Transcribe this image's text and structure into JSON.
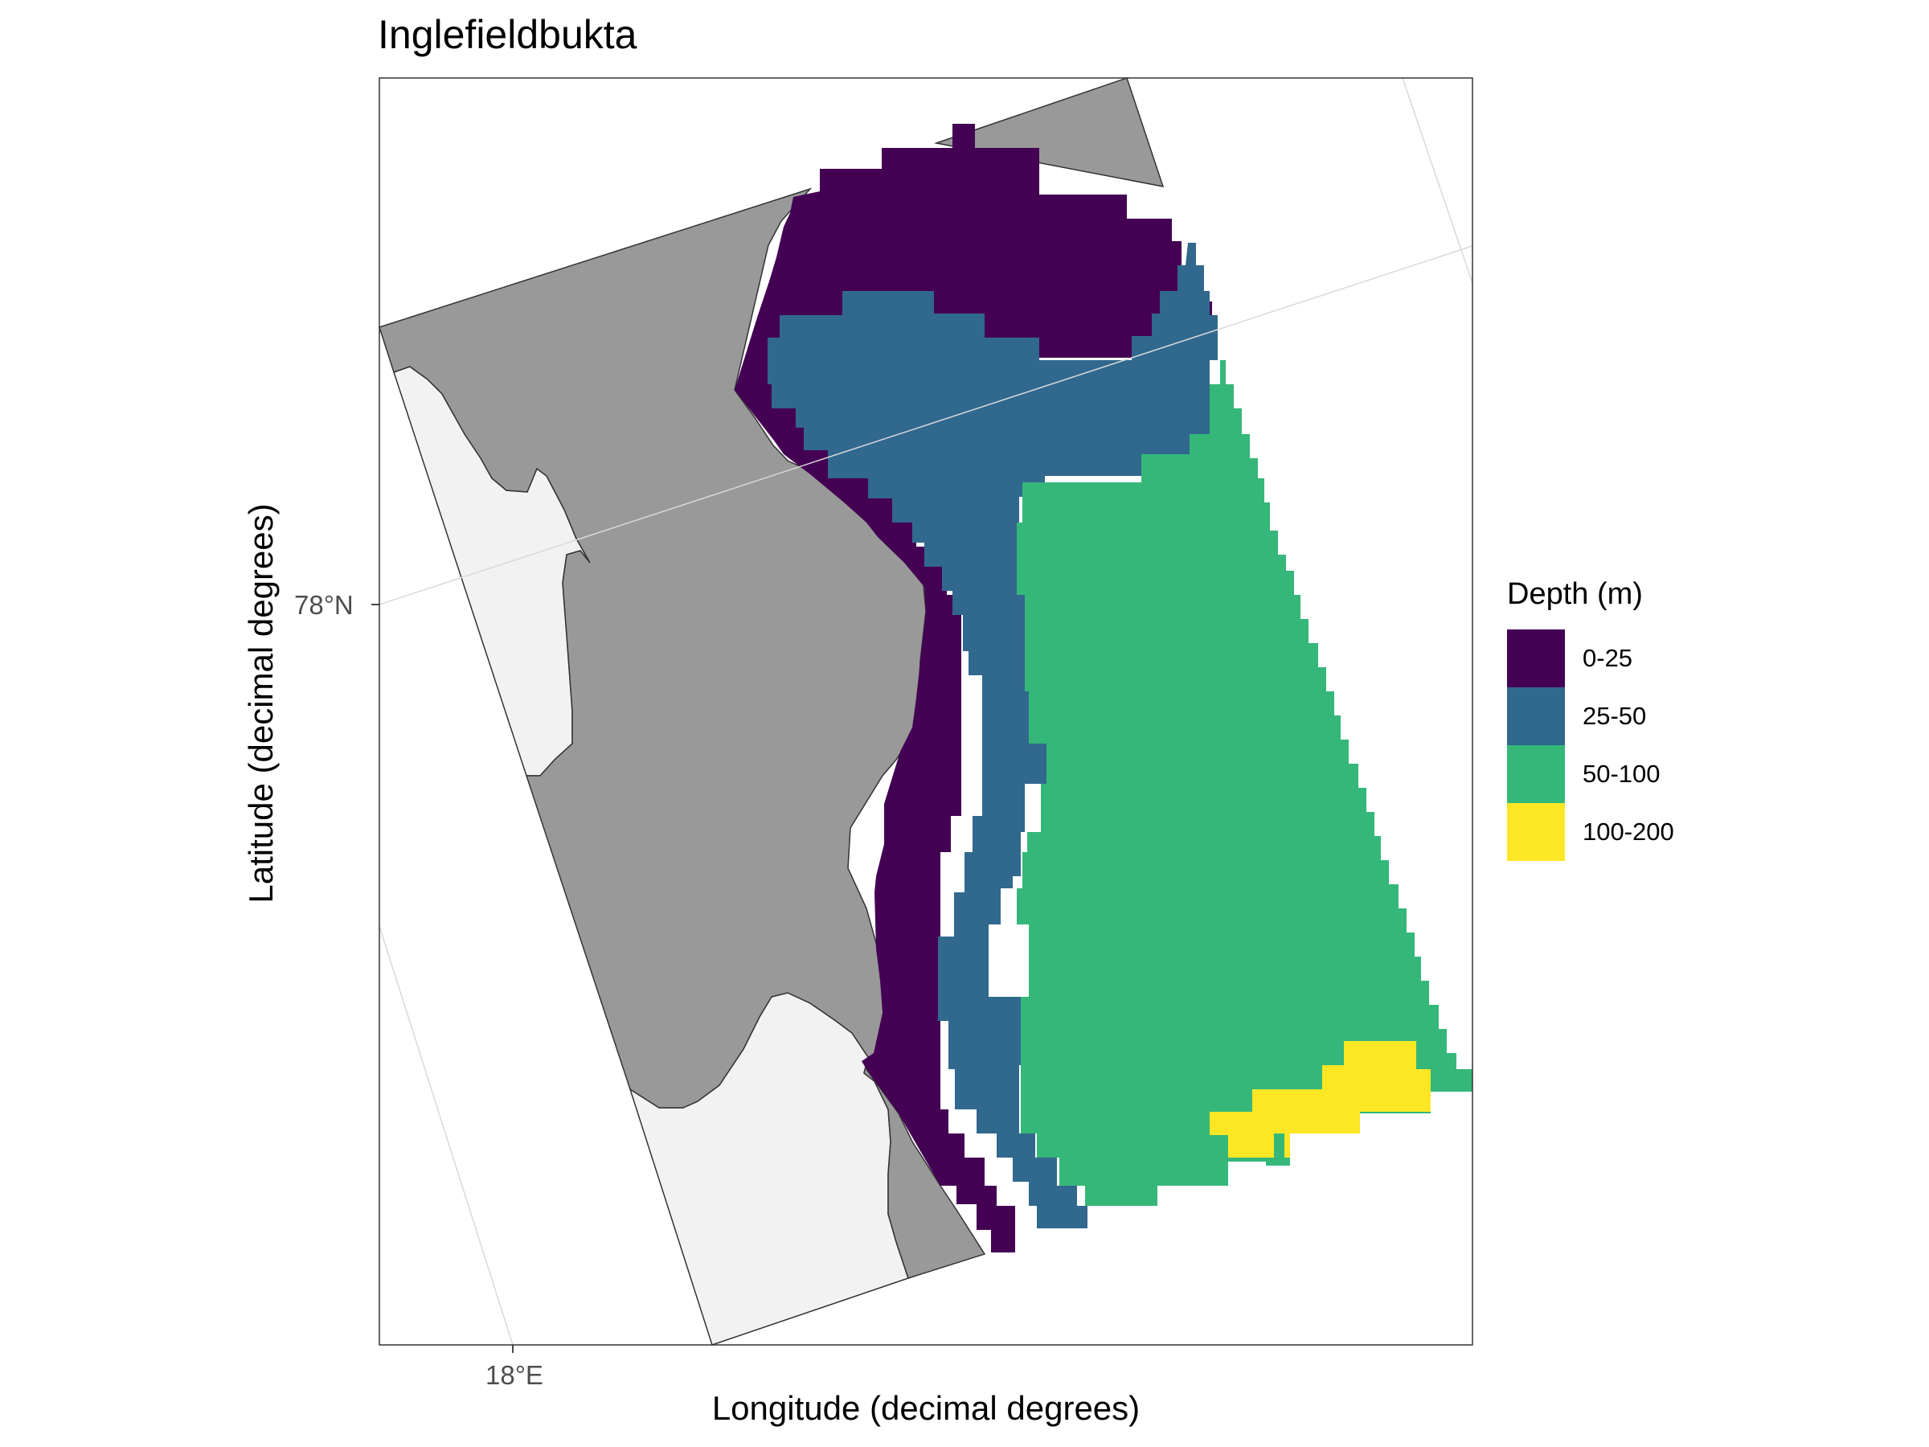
{
  "map": {
    "title": "Inglefieldbukta",
    "x_axis_label": "Longitude (decimal degrees)",
    "y_axis_label": "Latitude (decimal degrees)",
    "lat_tick_label": "78°N",
    "lon_tick_label": "18°E"
  },
  "legend": {
    "title": "Depth (m)",
    "items": [
      {
        "label": "0-25",
        "color": "#440154"
      },
      {
        "label": "25-50",
        "color": "#31688E"
      },
      {
        "label": "50-100",
        "color": "#35B779"
      },
      {
        "label": "100-200",
        "color": "#FDE725"
      }
    ]
  },
  "colors": {
    "land": "#999999",
    "outside_area": "#F2F2F2",
    "graticule": "#D9D9D9",
    "border": "#333333"
  }
}
